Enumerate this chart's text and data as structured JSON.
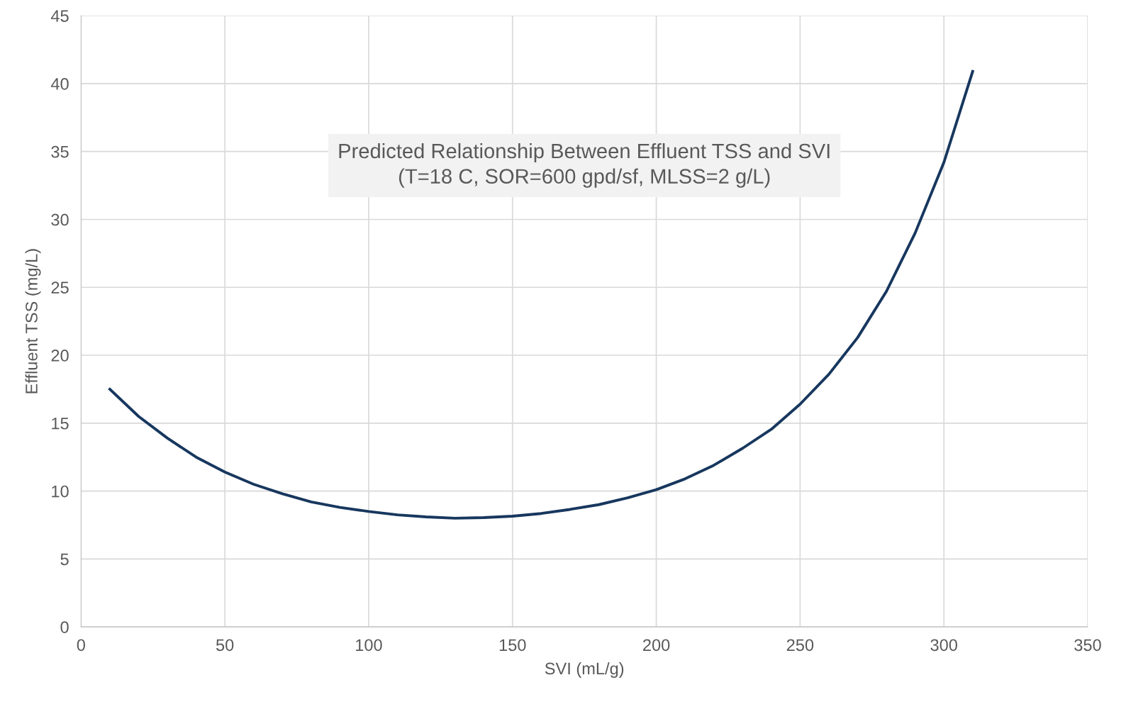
{
  "chart_data": {
    "type": "line",
    "title": "Predicted Relationship Between Effluent TSS and SVI\n(T=18 C, SOR=600 gpd/sf, MLSS=2 g/L)",
    "xlabel": "SVI (mL/g)",
    "ylabel": "Effluent TSS (mg/L)",
    "x": [
      10,
      20,
      30,
      40,
      50,
      60,
      70,
      80,
      90,
      100,
      110,
      120,
      130,
      140,
      150,
      160,
      170,
      180,
      190,
      200,
      210,
      220,
      230,
      240,
      250,
      260,
      270,
      280,
      290,
      300,
      310
    ],
    "series": [
      {
        "color": "#17375e",
        "values": [
          17.5,
          15.5,
          13.9,
          12.5,
          11.4,
          10.5,
          9.8,
          9.2,
          8.8,
          8.5,
          8.25,
          8.1,
          8.0,
          8.05,
          8.15,
          8.35,
          8.65,
          9.0,
          9.5,
          10.1,
          10.9,
          11.9,
          13.15,
          14.55,
          16.4,
          18.6,
          21.3,
          24.7,
          29.0,
          34.2,
          40.9
        ]
      }
    ],
    "xlim": [
      0,
      350
    ],
    "xticks": [
      0,
      50,
      100,
      150,
      200,
      250,
      300,
      350
    ],
    "ylim": [
      0,
      45
    ],
    "yticks": [
      0,
      5,
      10,
      15,
      20,
      25,
      30,
      35,
      40,
      45
    ],
    "grid": true,
    "legend": false,
    "marker": "none",
    "line_style": "solid"
  }
}
